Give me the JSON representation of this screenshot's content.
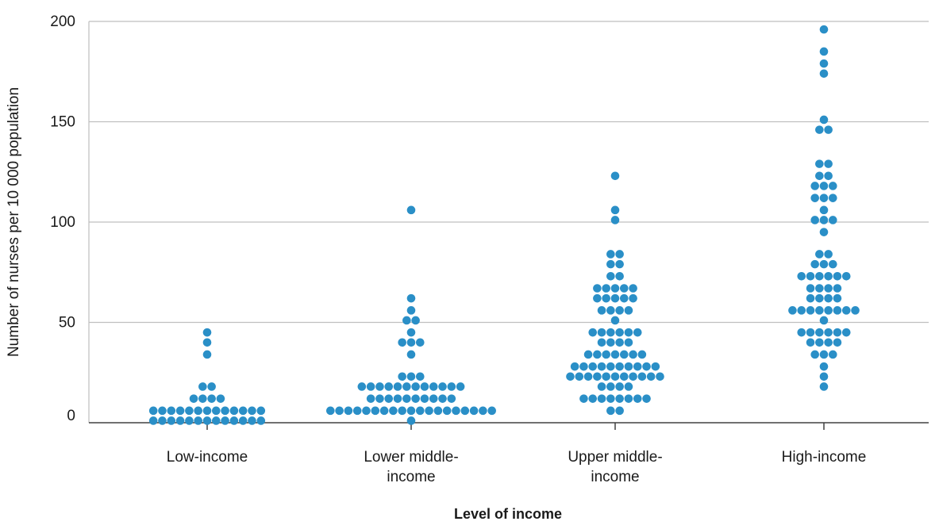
{
  "chart_data": {
    "type": "scatter",
    "subtype": "beeswarm",
    "ylabel": "Number of nurses per 10 000 population",
    "xlabel": "Level of income",
    "ylim": [
      0,
      200
    ],
    "yticks": [
      "0",
      "50",
      "100",
      "150",
      "200"
    ],
    "grid": true,
    "point_color": "#2a8fc7",
    "categories": [
      {
        "label_lines": [
          "Low-income"
        ],
        "values": [
          45,
          40,
          34,
          18,
          18,
          12,
          12,
          12,
          12,
          6,
          6,
          6,
          6,
          6,
          6,
          6,
          6,
          6,
          6,
          6,
          6,
          6,
          1,
          1,
          1,
          1,
          1,
          1,
          1,
          1,
          1,
          1,
          1,
          1,
          1
        ]
      },
      {
        "label_lines": [
          "Lower middle-",
          "income"
        ],
        "values": [
          106,
          62,
          56,
          51,
          51,
          45,
          40,
          40,
          40,
          34,
          23,
          23,
          23,
          18,
          18,
          18,
          18,
          18,
          18,
          18,
          18,
          18,
          18,
          18,
          18,
          12,
          12,
          12,
          12,
          12,
          12,
          12,
          12,
          12,
          12,
          6,
          6,
          6,
          6,
          6,
          6,
          6,
          6,
          6,
          6,
          6,
          6,
          6,
          6,
          6,
          6,
          6,
          6,
          6,
          1
        ]
      },
      {
        "label_lines": [
          "Upper middle-",
          "income"
        ],
        "values": [
          123,
          106,
          101,
          84,
          84,
          79,
          79,
          73,
          73,
          67,
          67,
          67,
          67,
          67,
          62,
          62,
          62,
          62,
          62,
          56,
          56,
          56,
          56,
          51,
          45,
          45,
          45,
          45,
          45,
          45,
          40,
          40,
          40,
          40,
          34,
          34,
          34,
          34,
          34,
          34,
          34,
          28,
          28,
          28,
          28,
          28,
          28,
          28,
          28,
          28,
          28,
          23,
          23,
          23,
          23,
          23,
          23,
          23,
          23,
          23,
          23,
          23,
          18,
          18,
          18,
          18,
          12,
          12,
          12,
          12,
          12,
          12,
          12,
          12,
          6,
          6
        ]
      },
      {
        "label_lines": [
          "High-income"
        ],
        "values": [
          196,
          185,
          179,
          174,
          151,
          146,
          146,
          129,
          129,
          123,
          123,
          118,
          118,
          118,
          112,
          112,
          112,
          106,
          101,
          101,
          101,
          95,
          84,
          84,
          79,
          79,
          79,
          73,
          73,
          73,
          73,
          73,
          73,
          67,
          67,
          67,
          67,
          62,
          62,
          62,
          62,
          56,
          56,
          56,
          56,
          56,
          56,
          56,
          56,
          51,
          45,
          45,
          45,
          45,
          45,
          45,
          40,
          40,
          40,
          40,
          34,
          34,
          34,
          28,
          23,
          18
        ]
      }
    ]
  }
}
